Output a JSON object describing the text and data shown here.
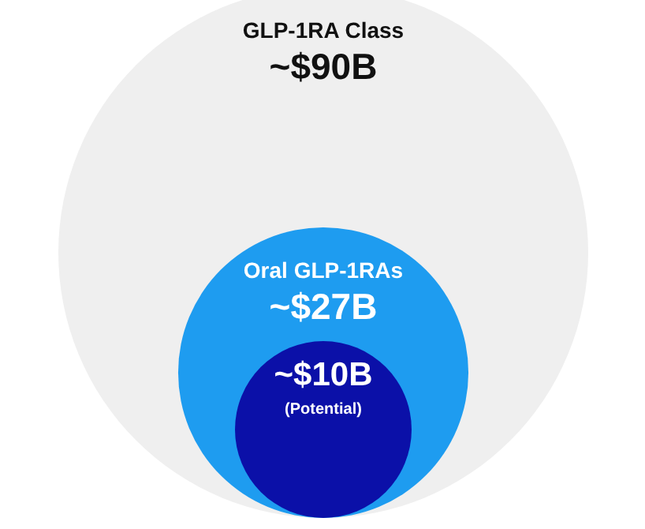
{
  "chart_data": {
    "type": "other",
    "categories": [
      "GLP-1RA Class",
      "Oral GLP-1RAs",
      null
    ],
    "values": [
      90,
      27,
      10
    ],
    "value_labels": [
      "~$90B",
      "~$27B",
      "~$10B"
    ],
    "colors": [
      "#efefef",
      "#1e9cf0",
      "#0b10a8"
    ],
    "annotations": [
      "(Potential)"
    ]
  }
}
